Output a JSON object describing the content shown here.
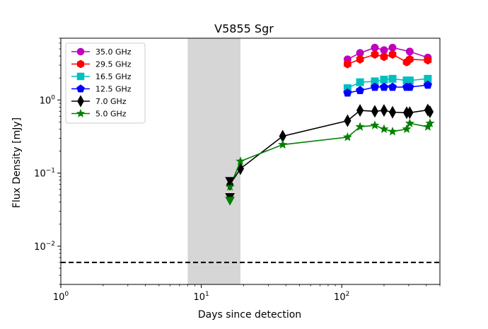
{
  "chart_data": {
    "type": "line",
    "title": "V5855 Sgr",
    "xlabel": "Days since detection",
    "ylabel": "Flux Density [mJy]",
    "xscale": "log",
    "yscale": "log",
    "xlim": [
      1,
      500
    ],
    "ylim": [
      0.003,
      7
    ],
    "x_ticks": [
      {
        "value": 1,
        "base": "10",
        "exp": "0"
      },
      {
        "value": 10,
        "base": "10",
        "exp": "1"
      },
      {
        "value": 100,
        "base": "10",
        "exp": "2"
      }
    ],
    "y_ticks": [
      {
        "value": 0.01,
        "base": "10",
        "exp": "−2"
      },
      {
        "value": 0.1,
        "base": "10",
        "exp": "−1"
      },
      {
        "value": 1,
        "base": "10",
        "exp": "0"
      }
    ],
    "shaded_region": {
      "x_start": 8,
      "x_end": 19,
      "color": "#d6d6d6"
    },
    "hline": {
      "y": 0.006,
      "style": "dashed",
      "color": "#000000"
    },
    "legend_position": "top-left",
    "series": [
      {
        "name": "35.0 GHz",
        "color": "#bf00bf",
        "marker": "circle",
        "x": [
          110,
          135,
          172,
          200,
          230,
          305,
          410
        ],
        "y": [
          3.6,
          4.4,
          5.2,
          4.8,
          5.2,
          4.6,
          3.8
        ]
      },
      {
        "name": "29.5 GHz",
        "color": "#ff0000",
        "marker": "hexagon",
        "x": [
          110,
          135,
          172,
          200,
          230,
          290,
          305,
          410
        ],
        "y": [
          3.1,
          3.6,
          4.2,
          3.9,
          4.2,
          3.3,
          3.6,
          3.5
        ]
      },
      {
        "name": "16.5 GHz",
        "color": "#00bfbf",
        "marker": "square",
        "x": [
          110,
          135,
          172,
          200,
          230,
          290,
          305,
          410
        ],
        "y": [
          1.45,
          1.75,
          1.8,
          1.9,
          1.95,
          1.85,
          1.85,
          1.95
        ]
      },
      {
        "name": "12.5 GHz",
        "color": "#0000ff",
        "marker": "pentagon",
        "x": [
          110,
          135,
          172,
          200,
          230,
          290,
          305,
          410
        ],
        "y": [
          1.25,
          1.35,
          1.5,
          1.5,
          1.5,
          1.5,
          1.5,
          1.6
        ]
      },
      {
        "name": "7.0 GHz",
        "color": "#000000",
        "marker": "thin_diamond",
        "x": [
          16,
          19,
          38,
          110,
          135,
          172,
          200,
          230,
          290,
          305,
          410,
          425
        ],
        "y": [
          0.07,
          0.115,
          0.32,
          0.52,
          0.72,
          0.7,
          0.72,
          0.68,
          0.67,
          0.67,
          0.73,
          0.69
        ]
      },
      {
        "name": "5.0 GHz",
        "color": "#008000",
        "marker": "star",
        "x": [
          16,
          19,
          38,
          110,
          135,
          172,
          200,
          230,
          290,
          305,
          410,
          425
        ],
        "y": [
          0.065,
          0.145,
          0.245,
          0.31,
          0.43,
          0.45,
          0.4,
          0.37,
          0.4,
          0.48,
          0.43,
          0.48
        ]
      }
    ],
    "upper_limits": [
      {
        "series": "7.0 GHz",
        "x": 16,
        "y": 0.078,
        "marker": "triangle-down",
        "color": "#000000"
      },
      {
        "series": "7.0 GHz",
        "x": 16,
        "y": 0.047,
        "marker": "triangle-down",
        "color": "#000000"
      },
      {
        "series": "5.0 GHz",
        "x": 16,
        "y": 0.042,
        "marker": "triangle-down",
        "color": "#008000"
      }
    ]
  }
}
